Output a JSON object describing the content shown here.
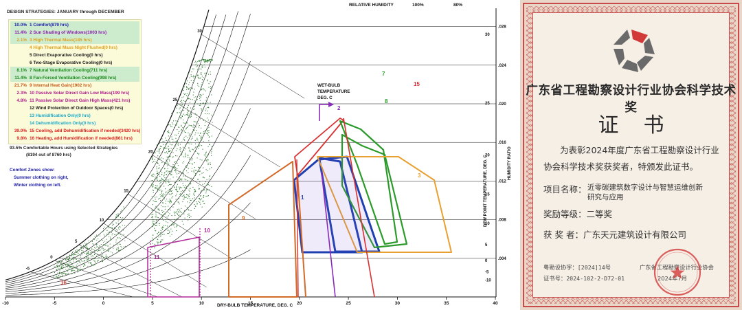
{
  "chart": {
    "legend_title": "DESIGN STRATEGIES:  JANUARY through DECEMBER",
    "strategies": [
      {
        "pct": "10.0%",
        "text": "1  Comfort(879 hrs)",
        "color": "#1a1aa8",
        "highlight": true
      },
      {
        "pct": "11.4%",
        "text": "2  Sun Shading of Windows(1003 hrs)",
        "color": "#8a1ab0",
        "highlight": true
      },
      {
        "pct": "2.1%",
        "text": "3  High Thermal Mass(185 hrs)",
        "color": "#e0a020",
        "highlight": true
      },
      {
        "pct": "",
        "text": "4  High Thermal Mass Night Flushed(0 hrs)",
        "color": "#e0a020",
        "highlight": false
      },
      {
        "pct": "",
        "text": "5  Direct Evaporative Cooling(0 hrs)",
        "color": "#1a1a1a",
        "highlight": false
      },
      {
        "pct": "",
        "text": "6  Two-Stage Evaporative Cooling(0 hrs)",
        "color": "#1a1a1a",
        "highlight": false
      },
      {
        "pct": "8.1%",
        "text": "7  Natural Ventilation Cooling(711 hrs)",
        "color": "#1a8a1a",
        "highlight": true
      },
      {
        "pct": "11.4%",
        "text": "8  Fan-Forced Ventilation Cooling(998 hrs)",
        "color": "#1a8a1a",
        "highlight": true
      },
      {
        "pct": "21.7%",
        "text": "9  Internal Heat Gain(1902 hrs)",
        "color": "#c85a1a",
        "highlight": false
      },
      {
        "pct": "2.3%",
        "text": "10  Passive Solar Direct Gain Low Mass(199 hrs)",
        "color": "#b01a8a",
        "highlight": false
      },
      {
        "pct": "4.8%",
        "text": "11  Passive Solar Direct Gain High Mass(421 hrs)",
        "color": "#b01a8a",
        "highlight": false
      },
      {
        "pct": "",
        "text": "12  Wind Protection of Outdoor Spaces(0 hrs)",
        "color": "#1a1a1a",
        "highlight": false
      },
      {
        "pct": "",
        "text": "13  Humidification Only(0 hrs)",
        "color": "#1aa8c8",
        "highlight": false
      },
      {
        "pct": "",
        "text": "14  Dehumidification Only(0 hrs)",
        "color": "#1aa8c8",
        "highlight": false
      },
      {
        "pct": "39.0%",
        "text": "15  Cooling, add Dehumidification if needed(3420 hrs)",
        "color": "#e01a1a",
        "highlight": false
      },
      {
        "pct": "9.8%",
        "text": "16  Heating, add Humidification if needed(861 hrs)",
        "color": "#e01a1a",
        "highlight": false
      }
    ],
    "summary_line1": "93.5%   Comfortable Hours using Selected Strategies",
    "summary_line2": "(8194 out of 8760 hrs)",
    "comfort_title": "Comfort Zones show:",
    "comfort_summer": "Summer clothing on right,",
    "comfort_winter": "Winter clothing on left.",
    "top_label": "RELATIVE HUMIDITY",
    "rh_labels": [
      "100%",
      "80%"
    ],
    "wet_bulb_label": [
      "WET-BULB",
      "TEMPERATURE",
      "DEG. C"
    ],
    "dew_point_label": "DEW POINT TEMPERATURE, DEG. C",
    "humidity_ratio_label": "HUMIDITY RATIO",
    "x_axis_label": "DRY-BULB TEMPERATURE, DEG. C",
    "x_ticks": [
      "-10",
      "-5",
      "0",
      "5",
      "10",
      "15",
      "20",
      "25",
      "30",
      "35",
      "40"
    ],
    "hr_ticks": [
      ".028",
      ".024",
      ".020",
      ".016",
      ".012",
      ".008",
      ".004"
    ],
    "dp_ticks": [
      "30",
      "25",
      "20",
      "15",
      "10",
      "5",
      "0",
      "-5",
      "-10"
    ],
    "wb_ticks": [
      "30",
      "25",
      "20",
      "15",
      "10",
      "5",
      "0",
      "-5"
    ],
    "zone_numbers": [
      "1",
      "2",
      "3",
      "7",
      "8",
      "9",
      "10",
      "11",
      "15",
      "16"
    ],
    "colors": {
      "comfort": "#1e3fb0",
      "shading": "#8a2ab8",
      "mass": "#e8a030",
      "ventilation": "#2a9a2a",
      "internal": "#d26a2a",
      "passive": "#b02a9a",
      "cooling": "#d83030",
      "heating": "#d83030",
      "points": "#2a7a2a"
    }
  },
  "certificate": {
    "title": "广东省工程勘察设计行业协会科学技术奖",
    "heading": "证书",
    "body_line1": "为表彰2024年度广东省工程勘察设计行业",
    "body_line2": "协会科学技术奖获奖者，特颁发此证书。",
    "project_label": "项目名称：",
    "project_line1": "近零碳建筑数字设计与智慧运维创新",
    "project_line2": "研究与应用",
    "grade": "奖励等级：二等奖",
    "winner": "获 奖 者：广东天元建筑设计有限公司",
    "doc_no": "粤勘设协字：[2024]14号",
    "cert_no": "证书号：2024-102-2-D72-01",
    "issuer": "广东省工程勘察设计行业协会",
    "date": "2024年7月",
    "seal_text": "广东省工程勘察设计行业协会",
    "colors": {
      "seal": "#d23a3a",
      "border": "#c84b4b",
      "logo_grey": "#6a6a6a",
      "logo_red": "#d23a3a"
    }
  }
}
